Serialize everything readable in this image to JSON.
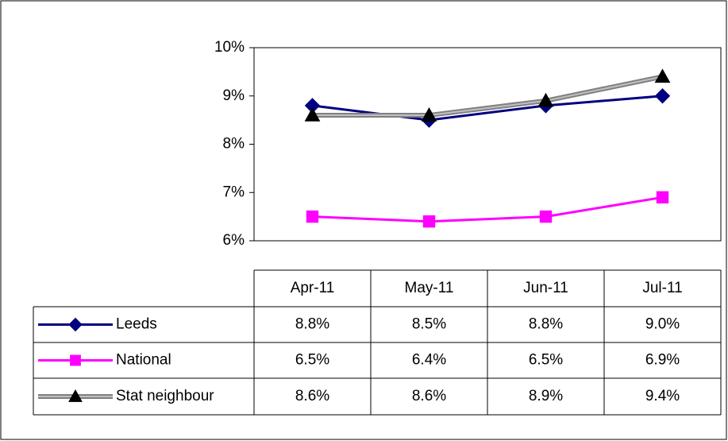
{
  "chart_data": {
    "type": "line",
    "categories": [
      "Apr-11",
      "May-11",
      "Jun-11",
      "Jul-11"
    ],
    "series": [
      {
        "name": "Leeds",
        "color": "#000080",
        "marker": "diamond",
        "marker_color": "#000080",
        "values": [
          8.8,
          8.5,
          8.8,
          9.0
        ],
        "value_labels": [
          "8.8%",
          "8.5%",
          "8.8%",
          "9.0%"
        ]
      },
      {
        "name": "National",
        "color": "#ff00ff",
        "marker": "square",
        "marker_color": "#ff00ff",
        "values": [
          6.5,
          6.4,
          6.5,
          6.9
        ],
        "value_labels": [
          "6.5%",
          "6.4%",
          "6.5%",
          "6.9%"
        ]
      },
      {
        "name": "Stat neighbour",
        "color": "#808080",
        "marker": "triangle",
        "marker_color": "#000000",
        "values": [
          8.6,
          8.6,
          8.9,
          9.4
        ],
        "value_labels": [
          "8.6%",
          "8.6%",
          "8.9%",
          "9.4%"
        ]
      }
    ],
    "ylim": [
      6,
      10
    ],
    "yticks": [
      {
        "value": 6,
        "label": "6%"
      },
      {
        "value": 7,
        "label": "7%"
      },
      {
        "value": 8,
        "label": "8%"
      },
      {
        "value": 9,
        "label": "9%"
      },
      {
        "value": 10,
        "label": "10%"
      }
    ],
    "grid": false,
    "data_table": true
  }
}
